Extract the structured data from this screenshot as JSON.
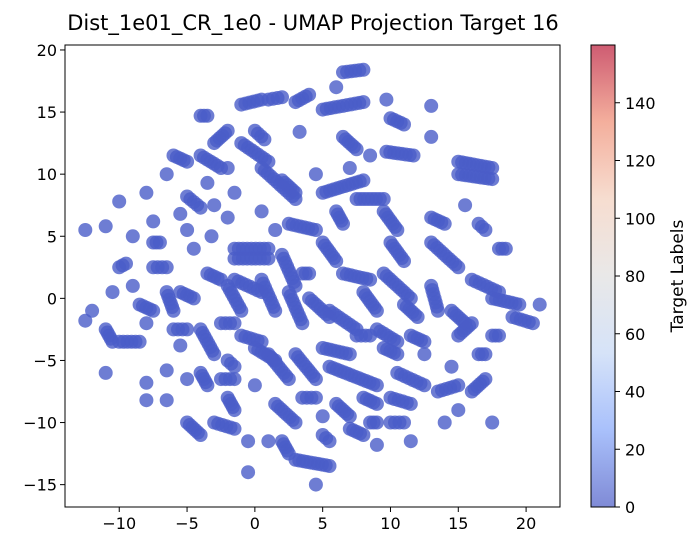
{
  "chart_data": {
    "type": "scatter",
    "title": "Dist_1e01_CR_1e0 - UMAP Projection Target 16",
    "xlabel": "",
    "ylabel": "",
    "xlim": [
      -14,
      22.5
    ],
    "ylim": [
      -16.8,
      20.4
    ],
    "xticks": [
      -10,
      -5,
      0,
      5,
      10,
      15,
      20
    ],
    "xtick_labels": [
      "−10",
      "−5",
      "0",
      "5",
      "10",
      "15",
      "20"
    ],
    "yticks": [
      -15,
      -10,
      -5,
      0,
      5,
      10,
      15,
      20
    ],
    "ytick_labels": [
      "−15",
      "−10",
      "−5",
      "0",
      "5",
      "10",
      "15",
      "20"
    ],
    "grid": false,
    "legend": "none",
    "point_color": "#4a5cc8",
    "point_alpha": 0.8,
    "colorbar": {
      "label": "Target Labels",
      "range": [
        0,
        160
      ],
      "ticks": [
        0,
        20,
        40,
        60,
        80,
        100,
        120,
        140
      ],
      "tick_labels": [
        "0",
        "20",
        "40",
        "60",
        "80",
        "100",
        "120",
        "140"
      ],
      "colormap": "coolwarm",
      "colors": [
        "#3b4cc0",
        "#7b9ff9",
        "#c0d4f5",
        "#dddcdc",
        "#f2cbb7",
        "#ee8468",
        "#b40426"
      ]
    },
    "clusters": [
      {
        "x": [
          6.5,
          8
        ],
        "y": [
          18.2,
          18.4
        ]
      },
      {
        "x": [
          6,
          6
        ],
        "y": [
          17,
          17
        ]
      },
      {
        "x": [
          3,
          4
        ],
        "y": [
          15.8,
          16.4
        ]
      },
      {
        "x": [
          1,
          2
        ],
        "y": [
          16,
          16.2
        ]
      },
      {
        "x": [
          -1,
          0.5
        ],
        "y": [
          15.6,
          16
        ]
      },
      {
        "x": [
          -4,
          -3.5
        ],
        "y": [
          14.7,
          14.7
        ]
      },
      {
        "x": [
          5,
          8
        ],
        "y": [
          15.2,
          15.8
        ]
      },
      {
        "x": [
          9.7,
          9.7
        ],
        "y": [
          16,
          16
        ]
      },
      {
        "x": [
          13,
          13
        ],
        "y": [
          15.5,
          15.5
        ]
      },
      {
        "x": [
          10,
          11
        ],
        "y": [
          14.5,
          14
        ]
      },
      {
        "x": [
          3.3,
          3.3
        ],
        "y": [
          13.4,
          13.4
        ]
      },
      {
        "x": [
          0,
          0.7
        ],
        "y": [
          13.5,
          12.8
        ]
      },
      {
        "x": [
          -1,
          1
        ],
        "y": [
          12.5,
          11
        ]
      },
      {
        "x": [
          -3,
          -2
        ],
        "y": [
          12.5,
          13.5
        ]
      },
      {
        "x": [
          -4,
          -2.5
        ],
        "y": [
          11.5,
          10.5
        ]
      },
      {
        "x": [
          -6,
          -5
        ],
        "y": [
          11.5,
          11
        ]
      },
      {
        "x": [
          6.5,
          7.5
        ],
        "y": [
          13,
          12
        ]
      },
      {
        "x": [
          8.5,
          8.5
        ],
        "y": [
          11.5,
          11.5
        ]
      },
      {
        "x": [
          7,
          7
        ],
        "y": [
          10.5,
          10.5
        ]
      },
      {
        "x": [
          9.7,
          11.7
        ],
        "y": [
          11.8,
          11.5
        ]
      },
      {
        "x": [
          13,
          13
        ],
        "y": [
          13,
          13
        ]
      },
      {
        "x": [
          15,
          17.5
        ],
        "y": [
          11,
          10.5
        ]
      },
      {
        "x": [
          15,
          17.5
        ],
        "y": [
          10,
          9.6
        ]
      },
      {
        "x": [
          2,
          3
        ],
        "y": [
          9.5,
          8.5
        ]
      },
      {
        "x": [
          4.5,
          4.5
        ],
        "y": [
          10,
          10
        ]
      },
      {
        "x": [
          0.5,
          3
        ],
        "y": [
          10.5,
          8
        ]
      },
      {
        "x": [
          -2,
          -2
        ],
        "y": [
          10.5,
          10.5
        ]
      },
      {
        "x": [
          -1.5,
          -1.5
        ],
        "y": [
          8.5,
          8.5
        ]
      },
      {
        "x": [
          -3.5,
          -3.5
        ],
        "y": [
          9.3,
          9.3
        ]
      },
      {
        "x": [
          -6.5,
          -6.5
        ],
        "y": [
          10,
          10
        ]
      },
      {
        "x": [
          -10,
          -10
        ],
        "y": [
          7.8,
          7.8
        ]
      },
      {
        "x": [
          -8,
          -8
        ],
        "y": [
          8.5,
          8.5
        ]
      },
      {
        "x": [
          -5,
          -4
        ],
        "y": [
          8.2,
          7.3
        ]
      },
      {
        "x": [
          -3,
          -3
        ],
        "y": [
          7.5,
          7.5
        ]
      },
      {
        "x": [
          -5.5,
          -5.5
        ],
        "y": [
          6.8,
          6.8
        ]
      },
      {
        "x": [
          -7.5,
          -7.5
        ],
        "y": [
          6.2,
          6.2
        ]
      },
      {
        "x": [
          -11,
          -11
        ],
        "y": [
          5.8,
          5.8
        ]
      },
      {
        "x": [
          -12.5,
          -12.5
        ],
        "y": [
          5.5,
          5.5
        ]
      },
      {
        "x": [
          -9,
          -9
        ],
        "y": [
          5,
          5
        ]
      },
      {
        "x": [
          -7.5,
          -7
        ],
        "y": [
          4.5,
          4.5
        ]
      },
      {
        "x": [
          -5,
          -5
        ],
        "y": [
          5.5,
          5.5
        ]
      },
      {
        "x": [
          -4.5,
          -4.5
        ],
        "y": [
          4,
          4
        ]
      },
      {
        "x": [
          -3.2,
          -3.2
        ],
        "y": [
          5,
          5
        ]
      },
      {
        "x": [
          -2,
          -2
        ],
        "y": [
          6.5,
          6.5
        ]
      },
      {
        "x": [
          0.5,
          0.5
        ],
        "y": [
          7,
          7
        ]
      },
      {
        "x": [
          1.5,
          1.5
        ],
        "y": [
          5.5,
          5.5
        ]
      },
      {
        "x": [
          -1.5,
          1
        ],
        "y": [
          4,
          4
        ]
      },
      {
        "x": [
          -1.5,
          1
        ],
        "y": [
          3.2,
          3.2
        ]
      },
      {
        "x": [
          2.5,
          4.5
        ],
        "y": [
          6,
          5.5
        ]
      },
      {
        "x": [
          5,
          8
        ],
        "y": [
          8.5,
          9.5
        ]
      },
      {
        "x": [
          7.5,
          9.5
        ],
        "y": [
          8,
          8
        ]
      },
      {
        "x": [
          6,
          6.5
        ],
        "y": [
          7,
          6
        ]
      },
      {
        "x": [
          5,
          6
        ],
        "y": [
          4.5,
          3
        ]
      },
      {
        "x": [
          9.5,
          10.5
        ],
        "y": [
          7,
          5.5
        ]
      },
      {
        "x": [
          10,
          11
        ],
        "y": [
          4.5,
          3
        ]
      },
      {
        "x": [
          13,
          14
        ],
        "y": [
          6.5,
          6
        ]
      },
      {
        "x": [
          15.5,
          15.5
        ],
        "y": [
          7.5,
          7.5
        ]
      },
      {
        "x": [
          16.5,
          17
        ],
        "y": [
          6,
          5.5
        ]
      },
      {
        "x": [
          18,
          18.5
        ],
        "y": [
          4,
          4
        ]
      },
      {
        "x": [
          13,
          15
        ],
        "y": [
          4.5,
          2.5
        ]
      },
      {
        "x": [
          -10,
          -9.5
        ],
        "y": [
          2.5,
          2.8
        ]
      },
      {
        "x": [
          -10.5,
          -10.5
        ],
        "y": [
          0.5,
          0.5
        ]
      },
      {
        "x": [
          -12.5,
          -12.5
        ],
        "y": [
          -1.8,
          -1.8
        ]
      },
      {
        "x": [
          -7.5,
          -6.5
        ],
        "y": [
          2.5,
          2.5
        ]
      },
      {
        "x": [
          -8.5,
          -7.5
        ],
        "y": [
          -0.5,
          -1
        ]
      },
      {
        "x": [
          -6.5,
          -6
        ],
        "y": [
          0.5,
          -1
        ]
      },
      {
        "x": [
          -5.5,
          -4.5
        ],
        "y": [
          0.5,
          0
        ]
      },
      {
        "x": [
          -3.5,
          -2.5
        ],
        "y": [
          2,
          1.5
        ]
      },
      {
        "x": [
          -2,
          -1
        ],
        "y": [
          1,
          -1
        ]
      },
      {
        "x": [
          -1.5,
          0.5
        ],
        "y": [
          1.5,
          0.5
        ]
      },
      {
        "x": [
          0.5,
          1.5
        ],
        "y": [
          1.5,
          -1
        ]
      },
      {
        "x": [
          2,
          3
        ],
        "y": [
          3.5,
          1
        ]
      },
      {
        "x": [
          3.5,
          4
        ],
        "y": [
          2,
          2
        ]
      },
      {
        "x": [
          2.5,
          3.5
        ],
        "y": [
          0.5,
          -2
        ]
      },
      {
        "x": [
          4,
          5.5
        ],
        "y": [
          0,
          -1.5
        ]
      },
      {
        "x": [
          5.5,
          7.5
        ],
        "y": [
          -1,
          -2.5
        ]
      },
      {
        "x": [
          6.5,
          8.5
        ],
        "y": [
          2,
          1.5
        ]
      },
      {
        "x": [
          8,
          9
        ],
        "y": [
          0.5,
          -1
        ]
      },
      {
        "x": [
          9.5,
          11.5
        ],
        "y": [
          2,
          0
        ]
      },
      {
        "x": [
          11,
          12
        ],
        "y": [
          -0.5,
          -1.5
        ]
      },
      {
        "x": [
          13,
          13.5
        ],
        "y": [
          1,
          -1
        ]
      },
      {
        "x": [
          14.5,
          15.5
        ],
        "y": [
          -1,
          -2
        ]
      },
      {
        "x": [
          16,
          18
        ],
        "y": [
          1.5,
          0.5
        ]
      },
      {
        "x": [
          17.5,
          19.5
        ],
        "y": [
          0,
          -0.5
        ]
      },
      {
        "x": [
          19,
          20.5
        ],
        "y": [
          -1.5,
          -2
        ]
      },
      {
        "x": [
          21,
          21
        ],
        "y": [
          -0.5,
          -0.5
        ]
      },
      {
        "x": [
          -11,
          -10.5
        ],
        "y": [
          -2.5,
          -3.5
        ]
      },
      {
        "x": [
          -11,
          -11
        ],
        "y": [
          -6,
          -6
        ]
      },
      {
        "x": [
          -10,
          -8.5
        ],
        "y": [
          -3.5,
          -3.5
        ]
      },
      {
        "x": [
          -8,
          -8
        ],
        "y": [
          -2,
          -2
        ]
      },
      {
        "x": [
          -6,
          -5
        ],
        "y": [
          -2.5,
          -2.5
        ]
      },
      {
        "x": [
          -5.5,
          -5.5
        ],
        "y": [
          -3.8,
          -3.8
        ]
      },
      {
        "x": [
          -4,
          -3
        ],
        "y": [
          -2.5,
          -4.5
        ]
      },
      {
        "x": [
          -2.5,
          -1.5
        ],
        "y": [
          -2,
          -2
        ]
      },
      {
        "x": [
          -1,
          0.5
        ],
        "y": [
          -3,
          -3.5
        ]
      },
      {
        "x": [
          -2,
          -1.5
        ],
        "y": [
          -5,
          -5.5
        ]
      },
      {
        "x": [
          0,
          1.5
        ],
        "y": [
          -4,
          -5
        ]
      },
      {
        "x": [
          1,
          2.5
        ],
        "y": [
          -4.5,
          -6.5
        ]
      },
      {
        "x": [
          3,
          4.5
        ],
        "y": [
          -4.5,
          -6.5
        ]
      },
      {
        "x": [
          5,
          7
        ],
        "y": [
          -4,
          -4.5
        ]
      },
      {
        "x": [
          5.5,
          9
        ],
        "y": [
          -5.5,
          -7
        ]
      },
      {
        "x": [
          7.5,
          8.5
        ],
        "y": [
          -3,
          -3
        ]
      },
      {
        "x": [
          9,
          10.5
        ],
        "y": [
          -2.5,
          -3.5
        ]
      },
      {
        "x": [
          9.5,
          10.5
        ],
        "y": [
          -4,
          -4.5
        ]
      },
      {
        "x": [
          11.5,
          12.5
        ],
        "y": [
          -3,
          -3.5
        ]
      },
      {
        "x": [
          12.5,
          12.5
        ],
        "y": [
          -4.5,
          -4.5
        ]
      },
      {
        "x": [
          15,
          16
        ],
        "y": [
          -3,
          -2
        ]
      },
      {
        "x": [
          17.5,
          18
        ],
        "y": [
          -3,
          -3
        ]
      },
      {
        "x": [
          16.5,
          17
        ],
        "y": [
          -4.5,
          -4.5
        ]
      },
      {
        "x": [
          14.5,
          14.5
        ],
        "y": [
          -5.5,
          -5.5
        ]
      },
      {
        "x": [
          -8,
          -8
        ],
        "y": [
          -6.8,
          -6.8
        ]
      },
      {
        "x": [
          -8,
          -8
        ],
        "y": [
          -8.2,
          -8.2
        ]
      },
      {
        "x": [
          -6.5,
          -6.5
        ],
        "y": [
          -8.2,
          -8.2
        ]
      },
      {
        "x": [
          -6.5,
          -6.5
        ],
        "y": [
          -5.8,
          -5.8
        ]
      },
      {
        "x": [
          -5,
          -5
        ],
        "y": [
          -6.5,
          -6.5
        ]
      },
      {
        "x": [
          -4,
          -3.5
        ],
        "y": [
          -6,
          -7
        ]
      },
      {
        "x": [
          -2.5,
          -1.5
        ],
        "y": [
          -6.5,
          -6.5
        ]
      },
      {
        "x": [
          0,
          0
        ],
        "y": [
          -7,
          -7
        ]
      },
      {
        "x": [
          -2,
          -1.5
        ],
        "y": [
          -8,
          -9
        ]
      },
      {
        "x": [
          1.5,
          3
        ],
        "y": [
          -8.5,
          -10
        ]
      },
      {
        "x": [
          3.5,
          4.5
        ],
        "y": [
          -8,
          -8
        ]
      },
      {
        "x": [
          5,
          5
        ],
        "y": [
          -9.5,
          -9.5
        ]
      },
      {
        "x": [
          6,
          7
        ],
        "y": [
          -8.5,
          -9.5
        ]
      },
      {
        "x": [
          8,
          9
        ],
        "y": [
          -8,
          -8.5
        ]
      },
      {
        "x": [
          10,
          11.5
        ],
        "y": [
          -8,
          -8.5
        ]
      },
      {
        "x": [
          10.5,
          12.5
        ],
        "y": [
          -6,
          -7
        ]
      },
      {
        "x": [
          13.5,
          15
        ],
        "y": [
          -7.5,
          -7
        ]
      },
      {
        "x": [
          16,
          17
        ],
        "y": [
          -7.5,
          -6.5
        ]
      },
      {
        "x": [
          -5,
          -4
        ],
        "y": [
          -10,
          -11
        ]
      },
      {
        "x": [
          -3,
          -1.5
        ],
        "y": [
          -10,
          -10.5
        ]
      },
      {
        "x": [
          -0.5,
          -0.5
        ],
        "y": [
          -11.5,
          -11.5
        ]
      },
      {
        "x": [
          1,
          1
        ],
        "y": [
          -11.5,
          -11.5
        ]
      },
      {
        "x": [
          -0.5,
          -0.5
        ],
        "y": [
          -14,
          -14
        ]
      },
      {
        "x": [
          2,
          2.5
        ],
        "y": [
          -11.5,
          -12.5
        ]
      },
      {
        "x": [
          5,
          5.5
        ],
        "y": [
          -11,
          -11.5
        ]
      },
      {
        "x": [
          7,
          8
        ],
        "y": [
          -10.5,
          -11
        ]
      },
      {
        "x": [
          8.5,
          9
        ],
        "y": [
          -10,
          -10
        ]
      },
      {
        "x": [
          10,
          11
        ],
        "y": [
          -10,
          -10
        ]
      },
      {
        "x": [
          9,
          9
        ],
        "y": [
          -11.8,
          -11.8
        ]
      },
      {
        "x": [
          11.5,
          11.5
        ],
        "y": [
          -11.5,
          -11.5
        ]
      },
      {
        "x": [
          14,
          14
        ],
        "y": [
          -10,
          -10
        ]
      },
      {
        "x": [
          15,
          15
        ],
        "y": [
          -9,
          -9
        ]
      },
      {
        "x": [
          17.5,
          17.5
        ],
        "y": [
          -10,
          -10
        ]
      },
      {
        "x": [
          3,
          5.5
        ],
        "y": [
          -13,
          -13.5
        ]
      },
      {
        "x": [
          4.5,
          4.5
        ],
        "y": [
          -15,
          -15
        ]
      },
      {
        "x": [
          -12,
          -12
        ],
        "y": [
          -1,
          -1
        ]
      },
      {
        "x": [
          -9,
          -9
        ],
        "y": [
          1,
          1
        ]
      }
    ]
  }
}
